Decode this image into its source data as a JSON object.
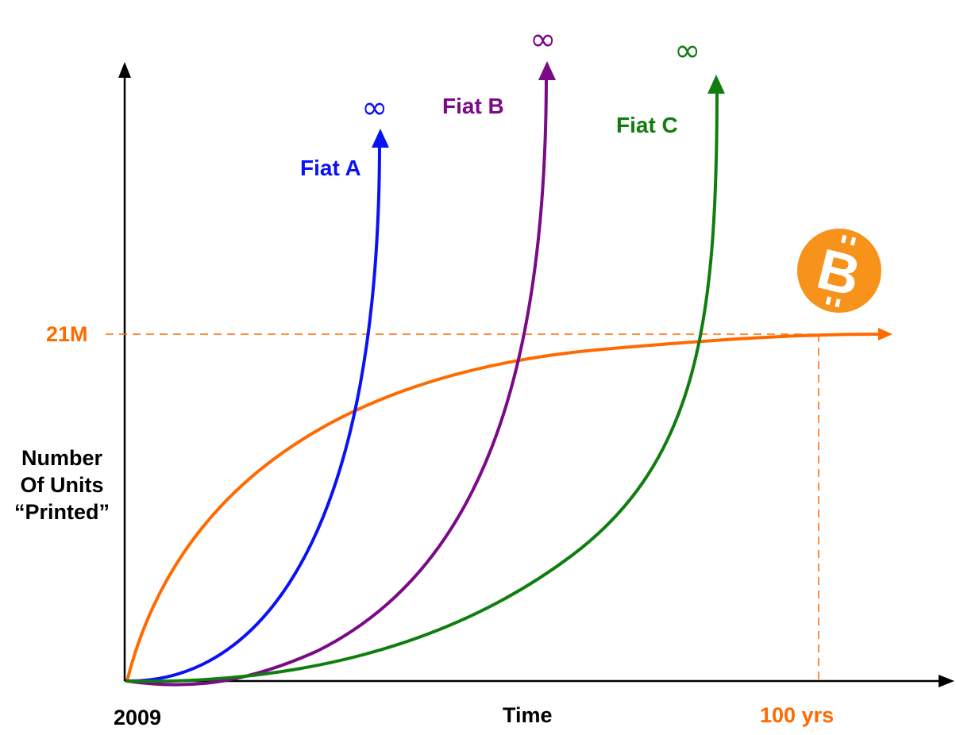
{
  "labels": {
    "y_axis": [
      "Number",
      "Of Units",
      "“Printed”"
    ],
    "x_axis": "Time",
    "x_start": "2009",
    "x_end": "100 yrs",
    "supply_cap": "21M"
  },
  "series": [
    {
      "name": "Fiat A",
      "color": "#0a12f5",
      "infinity": "∞"
    },
    {
      "name": "Fiat B",
      "color": "#7a0a86",
      "infinity": "∞"
    },
    {
      "name": "Fiat C",
      "color": "#0f7d0f",
      "infinity": "∞"
    }
  ],
  "bitcoin": {
    "color": "#ff6a00",
    "icon": "bitcoin-logo-icon",
    "icon_color": "#f7931a",
    "glyph": "B"
  }
}
